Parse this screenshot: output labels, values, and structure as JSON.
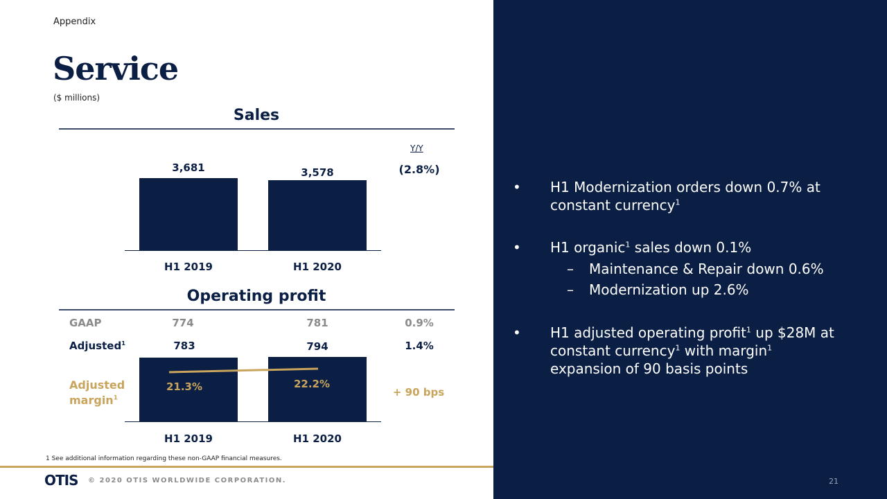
{
  "header": {
    "section": "Appendix",
    "title": "Service",
    "units": "($ millions)"
  },
  "colors": {
    "navy": "#0b1f44",
    "gold": "#c9a45c",
    "gray": "#8a8a8a"
  },
  "chart_data": [
    {
      "type": "bar",
      "title": "Sales",
      "categories": [
        "H1 2019",
        "H1 2020"
      ],
      "values": [
        3681,
        3578
      ],
      "labels": [
        "3,681",
        "3,578"
      ],
      "yoy_header": "Y/Y",
      "yoy": "(2.8%)"
    },
    {
      "type": "bar",
      "title": "Operating profit",
      "categories": [
        "H1 2019",
        "H1 2020"
      ],
      "series": [
        {
          "name": "GAAP",
          "values": [
            774,
            781
          ],
          "change": "0.9%"
        },
        {
          "name": "Adjusted",
          "values": [
            783,
            794
          ],
          "change": "1.4%"
        },
        {
          "name": "Adjusted margin",
          "values": [
            21.3,
            22.2
          ],
          "labels": [
            "21.3%",
            "22.2%"
          ],
          "change": "+ 90 bps"
        }
      ],
      "row_labels": {
        "gaap": "GAAP",
        "adjusted": "Adjusted",
        "margin_1": "Adjusted",
        "margin_2": "margin",
        "sup": "1"
      }
    }
  ],
  "bullets": {
    "b1_l1": "H1 Modernization orders down 0.7% at",
    "b1_l2": "constant currency",
    "sup": "1",
    "b2_a": "H1 organic",
    "b2_b": " sales down 0.1%",
    "b2_s1": "Maintenance & Repair down 0.6%",
    "b2_s2": "Modernization up 2.6%",
    "b3_l1a": "H1 adjusted operating profit",
    "b3_l1b": " up $28M at",
    "b3_l2a": "constant currency",
    "b3_l2b": " with margin",
    "b3_l3": "expansion of 90 basis points",
    "dot": "•",
    "dash": "–"
  },
  "footer": {
    "note": "1 See additional information regarding these non-GAAP financial measures.",
    "logo": "OTIS",
    "copyright": "© 2020 OTIS WORLDWIDE CORPORATION.",
    "page": "21"
  }
}
